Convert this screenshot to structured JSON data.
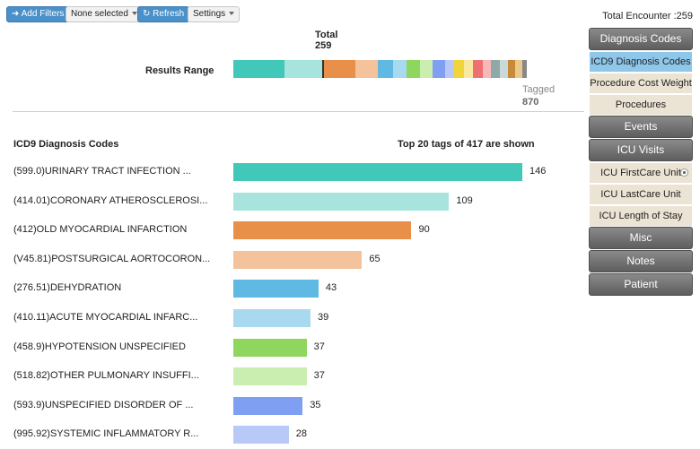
{
  "toolbar": {
    "add_filters": "Add Filters",
    "none_selected": "None selected",
    "refresh": "Refresh",
    "settings": "Settings"
  },
  "total_encounter": "Total Encounter :259",
  "results": {
    "total_label": "Total",
    "total_value": "259",
    "range_label": "Results Range",
    "tagged_label": "Tagged",
    "tagged_value": "870",
    "segments": [
      {
        "value": 146,
        "color": "#41c8b8"
      },
      {
        "value": 109,
        "color": "#a7e4de"
      },
      {
        "value": 5,
        "color": "#333333"
      },
      {
        "value": 90,
        "color": "#e8904a"
      },
      {
        "value": 65,
        "color": "#f5c39b"
      },
      {
        "value": 43,
        "color": "#5fb9e3"
      },
      {
        "value": 39,
        "color": "#a9d9ee"
      },
      {
        "value": 37,
        "color": "#8fd65e"
      },
      {
        "value": 37,
        "color": "#c9eeb0"
      },
      {
        "value": 35,
        "color": "#7f9ff2"
      },
      {
        "value": 28,
        "color": "#b9c9f7"
      },
      {
        "value": 28,
        "color": "#f0d43a"
      },
      {
        "value": 26,
        "color": "#f7eaa0"
      },
      {
        "value": 26,
        "color": "#ef7070"
      },
      {
        "value": 25,
        "color": "#f7b8b8"
      },
      {
        "value": 24,
        "color": "#8fa9a9"
      },
      {
        "value": 24,
        "color": "#c9d9d9"
      },
      {
        "value": 22,
        "color": "#c88a3a"
      },
      {
        "value": 20,
        "color": "#e9c98e"
      },
      {
        "value": 12,
        "color": "#888888"
      }
    ]
  },
  "list": {
    "title": "ICD9 Diagnosis Codes",
    "summary": "Top 20 tags of 417 are shown",
    "max": 146,
    "rows": [
      {
        "label": "(599.0)URINARY TRACT INFECTION ...",
        "value": 146,
        "color": "#41c8b8"
      },
      {
        "label": "(414.01)CORONARY ATHEROSCLEROSI...",
        "value": 109,
        "color": "#a7e4de"
      },
      {
        "label": "(412)OLD MYOCARDIAL INFARCTION",
        "value": 90,
        "color": "#e8904a"
      },
      {
        "label": "(V45.81)POSTSURGICAL AORTOCORON...",
        "value": 65,
        "color": "#f5c39b"
      },
      {
        "label": "(276.51)DEHYDRATION",
        "value": 43,
        "color": "#5fb9e3"
      },
      {
        "label": "(410.11)ACUTE MYOCARDIAL INFARC...",
        "value": 39,
        "color": "#a9d9ee"
      },
      {
        "label": "(458.9)HYPOTENSION UNSPECIFIED",
        "value": 37,
        "color": "#8fd65e"
      },
      {
        "label": "(518.82)OTHER PULMONARY INSUFFI...",
        "value": 37,
        "color": "#c9eeb0"
      },
      {
        "label": "(593.9)UNSPECIFIED DISORDER OF ...",
        "value": 35,
        "color": "#7f9ff2"
      },
      {
        "label": "(995.92)SYSTEMIC INFLAMMATORY R...",
        "value": 28,
        "color": "#b9c9f7"
      }
    ]
  },
  "menu": {
    "diagnosis_codes": "Diagnosis Codes",
    "icd9_codes": "ICD9 Diagnosis Codes",
    "procedure_cost_weight": "Procedure Cost Weight",
    "procedures": "Procedures",
    "events": "Events",
    "icu_visits": "ICU Visits",
    "icu_firstcare": "ICU FirstCare Unit",
    "icu_lastcare": "ICU LastCare Unit",
    "icu_length": "ICU Length of Stay",
    "misc": "Misc",
    "notes": "Notes",
    "patient": "Patient"
  }
}
